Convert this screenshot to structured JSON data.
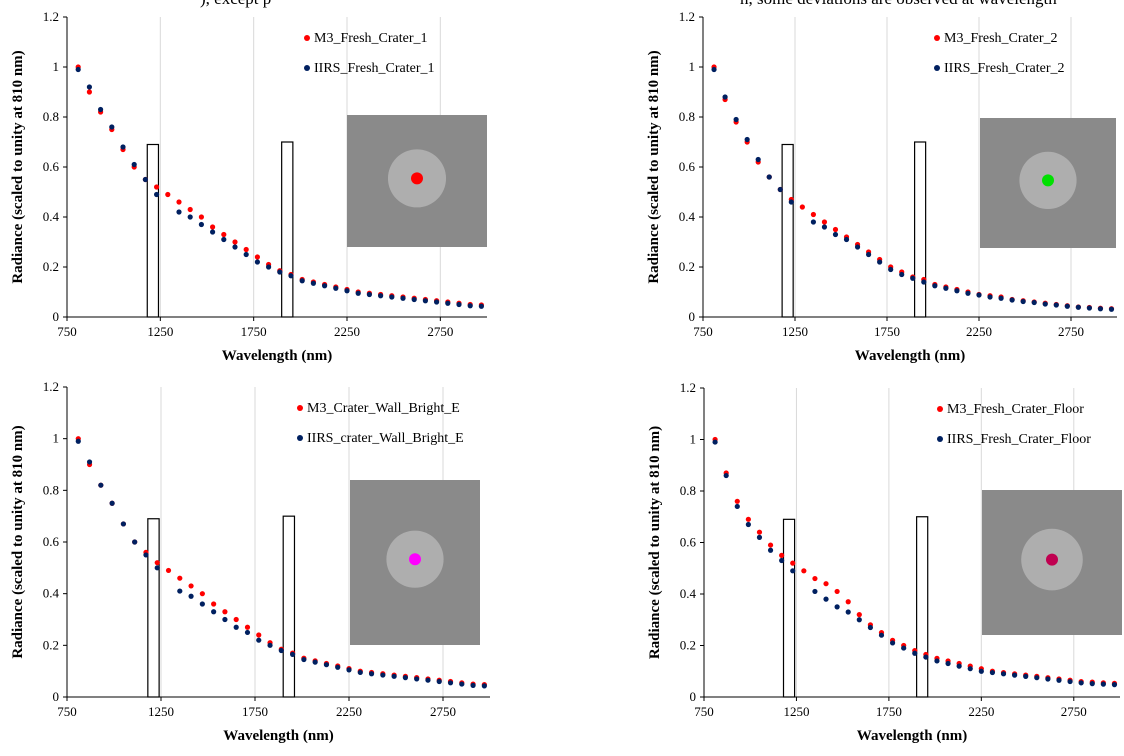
{
  "caption": [
    "), except p",
    "n, some deviations are observed at wavelength"
  ],
  "chart_data": [
    {
      "type": "scatter",
      "xlabel": "Wavelength (nm)",
      "ylabel": "Radiance (scaled to unity at 810 nm)",
      "xlim": [
        750,
        3000
      ],
      "xticks": [
        750,
        1250,
        1750,
        2250,
        2750
      ],
      "ylim": [
        0,
        1.2
      ],
      "yticks": [
        0,
        0.2,
        0.4,
        0.6,
        0.8,
        1,
        1.2
      ],
      "grid": "x",
      "boxes": [
        {
          "x0": 1180,
          "x1": 1240,
          "top": 0.69
        },
        {
          "x0": 1900,
          "x1": 1960,
          "top": 0.7
        }
      ],
      "x": [
        810,
        870,
        930,
        990,
        1050,
        1110,
        1170,
        1230,
        1290,
        1350,
        1410,
        1470,
        1530,
        1590,
        1650,
        1710,
        1770,
        1830,
        1890,
        1950,
        2010,
        2070,
        2130,
        2190,
        2250,
        2310,
        2370,
        2430,
        2490,
        2550,
        2610,
        2670,
        2730,
        2790,
        2850,
        2910,
        2970
      ],
      "series": [
        {
          "name": "M3_Fresh_Crater_1",
          "color": "#ff0000",
          "values": [
            1.0,
            0.9,
            0.82,
            0.75,
            0.67,
            0.6,
            0.55,
            0.52,
            0.49,
            0.46,
            0.43,
            0.4,
            0.36,
            0.33,
            0.3,
            0.27,
            0.24,
            0.21,
            0.185,
            0.17,
            0.15,
            0.14,
            0.13,
            0.12,
            0.11,
            0.1,
            0.095,
            0.09,
            0.085,
            0.08,
            0.075,
            0.07,
            0.065,
            0.06,
            0.055,
            0.05,
            0.048
          ]
        },
        {
          "name": "IIRS_Fresh_Crater_1",
          "color": "#002060",
          "values": [
            0.99,
            0.92,
            0.83,
            0.76,
            0.68,
            0.61,
            0.55,
            0.49,
            null,
            0.42,
            0.4,
            0.37,
            0.34,
            0.31,
            0.28,
            0.25,
            0.22,
            0.2,
            0.18,
            0.165,
            0.145,
            0.135,
            0.125,
            0.115,
            0.105,
            0.095,
            0.09,
            0.085,
            0.08,
            0.075,
            0.07,
            0.065,
            0.06,
            0.055,
            0.05,
            0.045,
            0.043
          ]
        }
      ]
    },
    {
      "type": "scatter",
      "xlabel": "Wavelength (nm)",
      "ylabel": "Radiance (scaled to unity at 810 nm)",
      "xlim": [
        750,
        3000
      ],
      "xticks": [
        750,
        1250,
        1750,
        2250,
        2750
      ],
      "ylim": [
        0,
        1.2
      ],
      "yticks": [
        0,
        0.2,
        0.4,
        0.6,
        0.8,
        1,
        1.2
      ],
      "grid": "x",
      "boxes": [
        {
          "x0": 1180,
          "x1": 1240,
          "top": 0.69
        },
        {
          "x0": 1900,
          "x1": 1960,
          "top": 0.7
        }
      ],
      "x": [
        810,
        870,
        930,
        990,
        1050,
        1110,
        1170,
        1230,
        1290,
        1350,
        1410,
        1470,
        1530,
        1590,
        1650,
        1710,
        1770,
        1830,
        1890,
        1950,
        2010,
        2070,
        2130,
        2190,
        2250,
        2310,
        2370,
        2430,
        2490,
        2550,
        2610,
        2670,
        2730,
        2790,
        2850,
        2910,
        2970
      ],
      "series": [
        {
          "name": "M3_Fresh_Crater_2",
          "color": "#ff0000",
          "values": [
            1.0,
            0.87,
            0.78,
            0.7,
            0.62,
            0.56,
            0.51,
            0.47,
            0.44,
            0.41,
            0.38,
            0.35,
            0.32,
            0.29,
            0.26,
            0.23,
            0.2,
            0.18,
            0.16,
            0.15,
            0.13,
            0.12,
            0.11,
            0.1,
            0.09,
            0.085,
            0.08,
            0.07,
            0.065,
            0.06,
            0.055,
            0.05,
            0.045,
            0.04,
            0.038,
            0.035,
            0.033
          ]
        },
        {
          "name": "IIRS_Fresh_Crater_2",
          "color": "#002060",
          "values": [
            0.99,
            0.88,
            0.79,
            0.71,
            0.63,
            0.56,
            0.51,
            0.46,
            null,
            0.38,
            0.36,
            0.33,
            0.31,
            0.28,
            0.25,
            0.22,
            0.19,
            0.17,
            0.155,
            0.14,
            0.125,
            0.115,
            0.105,
            0.095,
            0.088,
            0.08,
            0.075,
            0.068,
            0.062,
            0.058,
            0.052,
            0.048,
            0.043,
            0.039,
            0.036,
            0.033,
            0.031
          ]
        }
      ]
    },
    {
      "type": "scatter",
      "xlabel": "Wavelength (nm)",
      "ylabel": "Radiance (scaled to unity at 810 nm)",
      "xlim": [
        750,
        3000
      ],
      "xticks": [
        750,
        1250,
        1750,
        2250,
        2750
      ],
      "ylim": [
        0,
        1.2
      ],
      "yticks": [
        0,
        0.2,
        0.4,
        0.6,
        0.8,
        1,
        1.2
      ],
      "grid": "x",
      "boxes": [
        {
          "x0": 1180,
          "x1": 1240,
          "top": 0.69
        },
        {
          "x0": 1900,
          "x1": 1960,
          "top": 0.7
        }
      ],
      "x": [
        810,
        870,
        930,
        990,
        1050,
        1110,
        1170,
        1230,
        1290,
        1350,
        1410,
        1470,
        1530,
        1590,
        1650,
        1710,
        1770,
        1830,
        1890,
        1950,
        2010,
        2070,
        2130,
        2190,
        2250,
        2310,
        2370,
        2430,
        2490,
        2550,
        2610,
        2670,
        2730,
        2790,
        2850,
        2910,
        2970
      ],
      "series": [
        {
          "name": "M3_Crater_Wall_Bright_E",
          "color": "#ff0000",
          "values": [
            1.0,
            0.9,
            0.82,
            0.75,
            0.67,
            0.6,
            0.56,
            0.52,
            0.49,
            0.46,
            0.43,
            0.4,
            0.36,
            0.33,
            0.3,
            0.27,
            0.24,
            0.21,
            0.185,
            0.17,
            0.15,
            0.14,
            0.13,
            0.12,
            0.11,
            0.1,
            0.095,
            0.09,
            0.085,
            0.08,
            0.075,
            0.07,
            0.065,
            0.06,
            0.055,
            0.05,
            0.048
          ]
        },
        {
          "name": "IIRS_crater_Wall_Bright_E",
          "color": "#002060",
          "values": [
            0.99,
            0.91,
            0.82,
            0.75,
            0.67,
            0.6,
            0.55,
            0.5,
            null,
            0.41,
            0.39,
            0.36,
            0.33,
            0.3,
            0.27,
            0.25,
            0.22,
            0.2,
            0.18,
            0.165,
            0.145,
            0.135,
            0.125,
            0.115,
            0.105,
            0.095,
            0.09,
            0.085,
            0.08,
            0.075,
            0.07,
            0.065,
            0.06,
            0.055,
            0.05,
            0.045,
            0.043
          ]
        }
      ]
    },
    {
      "type": "scatter",
      "xlabel": "Wavelength (nm)",
      "ylabel": "Radiance (scaled to unity at 810 nm)",
      "xlim": [
        750,
        3000
      ],
      "xticks": [
        750,
        1250,
        1750,
        2250,
        2750
      ],
      "ylim": [
        0,
        1.2
      ],
      "yticks": [
        0,
        0.2,
        0.4,
        0.6,
        0.8,
        1,
        1.2
      ],
      "grid": "x",
      "boxes": [
        {
          "x0": 1180,
          "x1": 1240,
          "top": 0.69
        },
        {
          "x0": 1900,
          "x1": 1960,
          "top": 0.7
        }
      ],
      "x": [
        810,
        870,
        930,
        990,
        1050,
        1110,
        1170,
        1230,
        1290,
        1350,
        1410,
        1470,
        1530,
        1590,
        1650,
        1710,
        1770,
        1830,
        1890,
        1950,
        2010,
        2070,
        2130,
        2190,
        2250,
        2310,
        2370,
        2430,
        2490,
        2550,
        2610,
        2670,
        2730,
        2790,
        2850,
        2910,
        2970
      ],
      "series": [
        {
          "name": "M3_Fresh_Crater_Floor",
          "color": "#ff0000",
          "values": [
            1.0,
            0.87,
            0.76,
            0.69,
            0.64,
            0.59,
            0.55,
            0.52,
            0.49,
            0.46,
            0.44,
            0.41,
            0.37,
            0.32,
            0.28,
            0.25,
            0.22,
            0.2,
            0.18,
            0.165,
            0.15,
            0.14,
            0.13,
            0.12,
            0.11,
            0.1,
            0.095,
            0.09,
            0.085,
            0.08,
            0.075,
            0.07,
            0.065,
            0.06,
            0.058,
            0.055,
            0.053
          ]
        },
        {
          "name": "IIRS_Fresh_Crater_Floor",
          "color": "#002060",
          "values": [
            0.99,
            0.86,
            0.74,
            0.67,
            0.62,
            0.57,
            0.53,
            0.49,
            null,
            0.41,
            0.38,
            0.35,
            0.33,
            0.3,
            0.27,
            0.24,
            0.21,
            0.19,
            0.17,
            0.155,
            0.14,
            0.13,
            0.12,
            0.11,
            0.1,
            0.095,
            0.09,
            0.085,
            0.08,
            0.075,
            0.07,
            0.065,
            0.06,
            0.055,
            0.052,
            0.05,
            0.048
          ]
        }
      ]
    }
  ]
}
